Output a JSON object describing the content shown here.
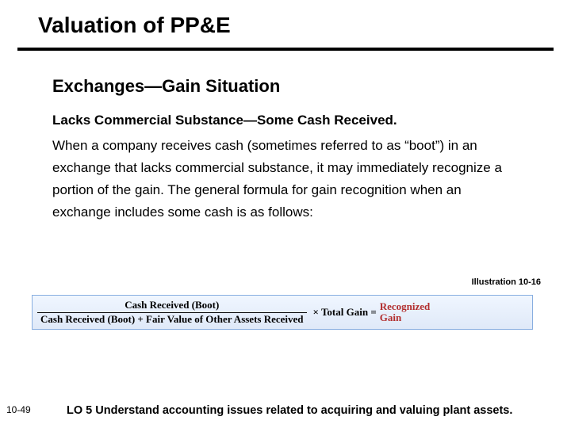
{
  "title": "Valuation of PP&E",
  "subtitle": "Exchanges—Gain Situation",
  "lead": "Lacks Commercial Substance—Some Cash Received.",
  "body": "When a company receives cash (sometimes referred to as “boot”) in an exchange that lacks commercial substance, it may immediately recognize a portion of the gain. The general formula for gain recognition when an exchange includes some cash is as follows:",
  "illustration_label": "Illustration 10-16",
  "formula": {
    "numerator": "Cash Received (Boot)",
    "denominator": "Cash Received (Boot) + Fair Value of Other Assets Received",
    "times": "× Total Gain =",
    "result_l1": "Recognized",
    "result_l2": "Gain",
    "border_color": "#88aee0",
    "bg_top": "#f0f6ff",
    "bg_bottom": "#dfe9f8",
    "result_color": "#b22e2e",
    "font_family": "Times New Roman"
  },
  "page_number": "10-49",
  "learning_objective": "LO 5  Understand accounting issues related to acquiring and valuing plant assets.",
  "colors": {
    "text": "#000000",
    "background": "#ffffff",
    "rule": "#000000"
  },
  "fonts": {
    "body_family": "Arial",
    "title_size_pt": 21,
    "subtitle_size_pt": 17,
    "body_size_pt": 13,
    "illus_label_size_pt": 8,
    "formula_size_pt": 10,
    "lo_size_pt": 11,
    "pagenum_size_pt": 9
  }
}
